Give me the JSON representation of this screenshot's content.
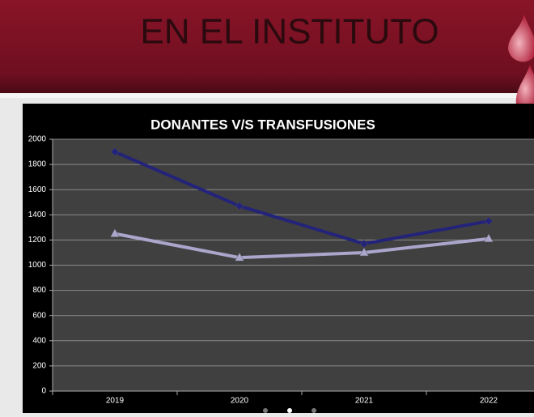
{
  "header": {
    "title": "EN EL INSTITUTO"
  },
  "chart_data": {
    "type": "line",
    "title": "DONANTES V/S TRANSFUSIONES",
    "categories": [
      "2019",
      "2020",
      "2021",
      "2022"
    ],
    "series": [
      {
        "color": "#23237a",
        "marker": "diamond",
        "values": [
          1900,
          1470,
          1170,
          1350
        ]
      },
      {
        "color": "#aaa6cc",
        "marker": "triangle",
        "values": [
          1250,
          1060,
          1100,
          1210
        ]
      }
    ],
    "ylim": [
      0,
      2000
    ],
    "yticks": [
      0,
      200,
      400,
      600,
      800,
      1000,
      1200,
      1400,
      1600,
      1800,
      2000
    ],
    "grid": true
  }
}
